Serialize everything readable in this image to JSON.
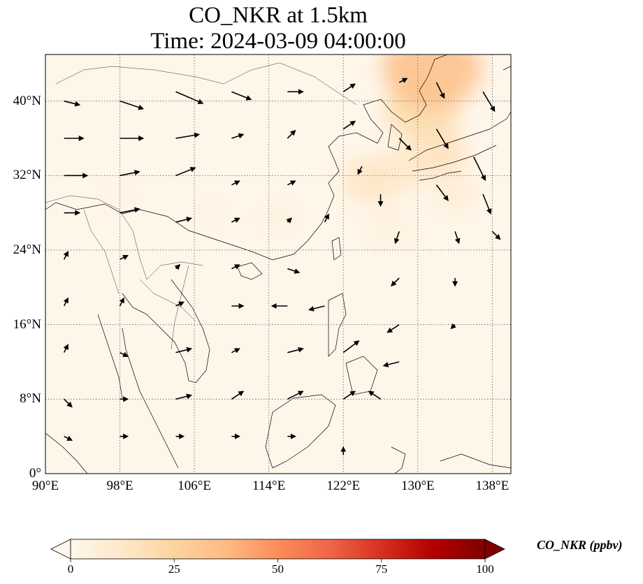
{
  "title": {
    "line1": "CO_NKR at 1.5km",
    "line2": "Time: 2024-03-09 04:00:00"
  },
  "map": {
    "projection": "PlateCarree",
    "lon_range": [
      90,
      140
    ],
    "lat_range": [
      0,
      45
    ],
    "gridlines": "dotted",
    "coastlines": true,
    "borders": true,
    "lat_ticks": [
      {
        "value": 0,
        "label": "0°"
      },
      {
        "value": 8,
        "label": "8°N"
      },
      {
        "value": 16,
        "label": "16°N"
      },
      {
        "value": 24,
        "label": "24°N"
      },
      {
        "value": 32,
        "label": "32°N"
      },
      {
        "value": 40,
        "label": "40°N"
      }
    ],
    "lon_ticks": [
      {
        "value": 90,
        "label": "90°E"
      },
      {
        "value": 98,
        "label": "98°E"
      },
      {
        "value": 106,
        "label": "106°E"
      },
      {
        "value": 114,
        "label": "114°E"
      },
      {
        "value": 122,
        "label": "122°E"
      },
      {
        "value": 130,
        "label": "130°E"
      },
      {
        "value": 138,
        "label": "138°E"
      }
    ]
  },
  "colorbar": {
    "label": "CO_NKR (ppbv)",
    "colormap": "OrRd",
    "min": 0,
    "max": 100,
    "extend": "both",
    "ticks": [
      "0",
      "25",
      "50",
      "75",
      "100"
    ],
    "colors": [
      "#fff7ec",
      "#fee8c8",
      "#fdd49e",
      "#fdbb84",
      "#fc8d59",
      "#ef6548",
      "#d7301f",
      "#b30000",
      "#7f0000"
    ]
  },
  "chart_data": {
    "type": "heatmap",
    "variable": "CO_NKR",
    "level": "1.5km",
    "units": "ppbv",
    "time": "2024-03-09 04:00:00",
    "value_range": [
      0,
      100
    ],
    "plumes": [
      {
        "lon": 130.5,
        "lat": 39.0,
        "value": 22
      },
      {
        "lon": 131.5,
        "lat": 43.5,
        "value": 35
      },
      {
        "lon": 132.0,
        "lat": 34.5,
        "value": 16
      },
      {
        "lon": 125.0,
        "lat": 31.5,
        "value": 14
      },
      {
        "lon": 128.0,
        "lat": 32.5,
        "value": 12
      },
      {
        "lon": 127.0,
        "lat": 26.5,
        "value": 6
      },
      {
        "lon": 134.0,
        "lat": 30.0,
        "value": 8
      },
      {
        "lon": 115.0,
        "lat": 27.5,
        "value": 5
      },
      {
        "lon": 108.0,
        "lat": 28.0,
        "value": 3
      },
      {
        "lon": 98.0,
        "lat": 30.0,
        "value": 3
      }
    ],
    "background_value": 2,
    "wind_vectors": [
      {
        "lon": 92,
        "lat": 40,
        "u": 4,
        "v": -1
      },
      {
        "lon": 98,
        "lat": 40,
        "u": 6,
        "v": -2
      },
      {
        "lon": 104,
        "lat": 41,
        "u": 7,
        "v": -3
      },
      {
        "lon": 110,
        "lat": 41,
        "u": 5,
        "v": -2
      },
      {
        "lon": 116,
        "lat": 41,
        "u": 4,
        "v": 0
      },
      {
        "lon": 122,
        "lat": 41,
        "u": 3,
        "v": 2
      },
      {
        "lon": 92,
        "lat": 36,
        "u": 5,
        "v": 0
      },
      {
        "lon": 98,
        "lat": 36,
        "u": 6,
        "v": 0
      },
      {
        "lon": 104,
        "lat": 36,
        "u": 6,
        "v": 1
      },
      {
        "lon": 110,
        "lat": 36,
        "u": 3,
        "v": 1
      },
      {
        "lon": 116,
        "lat": 36,
        "u": 2,
        "v": 2
      },
      {
        "lon": 122,
        "lat": 37,
        "u": 3,
        "v": 2
      },
      {
        "lon": 92,
        "lat": 32,
        "u": 6,
        "v": 0
      },
      {
        "lon": 98,
        "lat": 32,
        "u": 5,
        "v": 1
      },
      {
        "lon": 104,
        "lat": 32,
        "u": 5,
        "v": 2
      },
      {
        "lon": 110,
        "lat": 31,
        "u": 2,
        "v": 1
      },
      {
        "lon": 116,
        "lat": 31,
        "u": 2,
        "v": 1
      },
      {
        "lon": 92,
        "lat": 28,
        "u": 4,
        "v": 0
      },
      {
        "lon": 98,
        "lat": 28,
        "u": 5,
        "v": 1
      },
      {
        "lon": 104,
        "lat": 27,
        "u": 4,
        "v": 1
      },
      {
        "lon": 110,
        "lat": 27,
        "u": 2,
        "v": 1
      },
      {
        "lon": 116,
        "lat": 27,
        "u": 1,
        "v": 1
      },
      {
        "lon": 120,
        "lat": 27,
        "u": 1,
        "v": 2
      },
      {
        "lon": 92,
        "lat": 23,
        "u": 1,
        "v": 2
      },
      {
        "lon": 98,
        "lat": 23,
        "u": 2,
        "v": 1
      },
      {
        "lon": 104,
        "lat": 22,
        "u": 1,
        "v": 1
      },
      {
        "lon": 110,
        "lat": 22,
        "u": 2,
        "v": 1
      },
      {
        "lon": 116,
        "lat": 22,
        "u": 3,
        "v": -1
      },
      {
        "lon": 92,
        "lat": 18,
        "u": 1,
        "v": 2
      },
      {
        "lon": 98,
        "lat": 18,
        "u": 1,
        "v": 2
      },
      {
        "lon": 104,
        "lat": 18,
        "u": 2,
        "v": 1
      },
      {
        "lon": 110,
        "lat": 18,
        "u": 3,
        "v": 0
      },
      {
        "lon": 116,
        "lat": 18,
        "u": -4,
        "v": 0
      },
      {
        "lon": 120,
        "lat": 18,
        "u": -4,
        "v": -1
      },
      {
        "lon": 92,
        "lat": 13,
        "u": 1,
        "v": 2
      },
      {
        "lon": 98,
        "lat": 13,
        "u": 2,
        "v": -1
      },
      {
        "lon": 104,
        "lat": 13,
        "u": 4,
        "v": 1
      },
      {
        "lon": 110,
        "lat": 13,
        "u": 2,
        "v": 1
      },
      {
        "lon": 116,
        "lat": 13,
        "u": 4,
        "v": 1
      },
      {
        "lon": 122,
        "lat": 13,
        "u": 4,
        "v": 3
      },
      {
        "lon": 92,
        "lat": 8,
        "u": 2,
        "v": -2
      },
      {
        "lon": 98,
        "lat": 8,
        "u": 2,
        "v": 0
      },
      {
        "lon": 104,
        "lat": 8,
        "u": 4,
        "v": 1
      },
      {
        "lon": 110,
        "lat": 8,
        "u": 3,
        "v": 2
      },
      {
        "lon": 116,
        "lat": 8,
        "u": 4,
        "v": 2
      },
      {
        "lon": 122,
        "lat": 8,
        "u": 3,
        "v": 2
      },
      {
        "lon": 92,
        "lat": 4,
        "u": 2,
        "v": -1
      },
      {
        "lon": 98,
        "lat": 4,
        "u": 2,
        "v": 0
      },
      {
        "lon": 104,
        "lat": 4,
        "u": 2,
        "v": 0
      },
      {
        "lon": 110,
        "lat": 4,
        "u": 2,
        "v": 0
      },
      {
        "lon": 116,
        "lat": 4,
        "u": 2,
        "v": 0
      },
      {
        "lon": 122,
        "lat": 2,
        "u": 0,
        "v": 2
      },
      {
        "lon": 128,
        "lat": 26,
        "u": -1,
        "v": -3
      },
      {
        "lon": 134,
        "lat": 26,
        "u": 1,
        "v": -3
      },
      {
        "lon": 138,
        "lat": 26,
        "u": 2,
        "v": -2
      },
      {
        "lon": 128,
        "lat": 21,
        "u": -2,
        "v": -2
      },
      {
        "lon": 134,
        "lat": 21,
        "u": 0,
        "v": -2
      },
      {
        "lon": 128,
        "lat": 16,
        "u": -3,
        "v": -2
      },
      {
        "lon": 134,
        "lat": 16,
        "u": -1,
        "v": -1
      },
      {
        "lon": 128,
        "lat": 12,
        "u": -4,
        "v": -1
      },
      {
        "lon": 126,
        "lat": 8,
        "u": -3,
        "v": 2
      },
      {
        "lon": 128,
        "lat": 36,
        "u": 3,
        "v": -3
      },
      {
        "lon": 132,
        "lat": 37,
        "u": 3,
        "v": -5
      },
      {
        "lon": 136,
        "lat": 34,
        "u": 3,
        "v": -6
      },
      {
        "lon": 132,
        "lat": 31,
        "u": 3,
        "v": -4
      },
      {
        "lon": 137,
        "lat": 30,
        "u": 2,
        "v": -5
      },
      {
        "lon": 132,
        "lat": 42,
        "u": 2,
        "v": -4
      },
      {
        "lon": 137,
        "lat": 41,
        "u": 3,
        "v": -5
      },
      {
        "lon": 128,
        "lat": 42,
        "u": 2,
        "v": 1
      },
      {
        "lon": 124,
        "lat": 33,
        "u": -1,
        "v": -2
      },
      {
        "lon": 126,
        "lat": 30,
        "u": 0,
        "v": -3
      }
    ]
  }
}
